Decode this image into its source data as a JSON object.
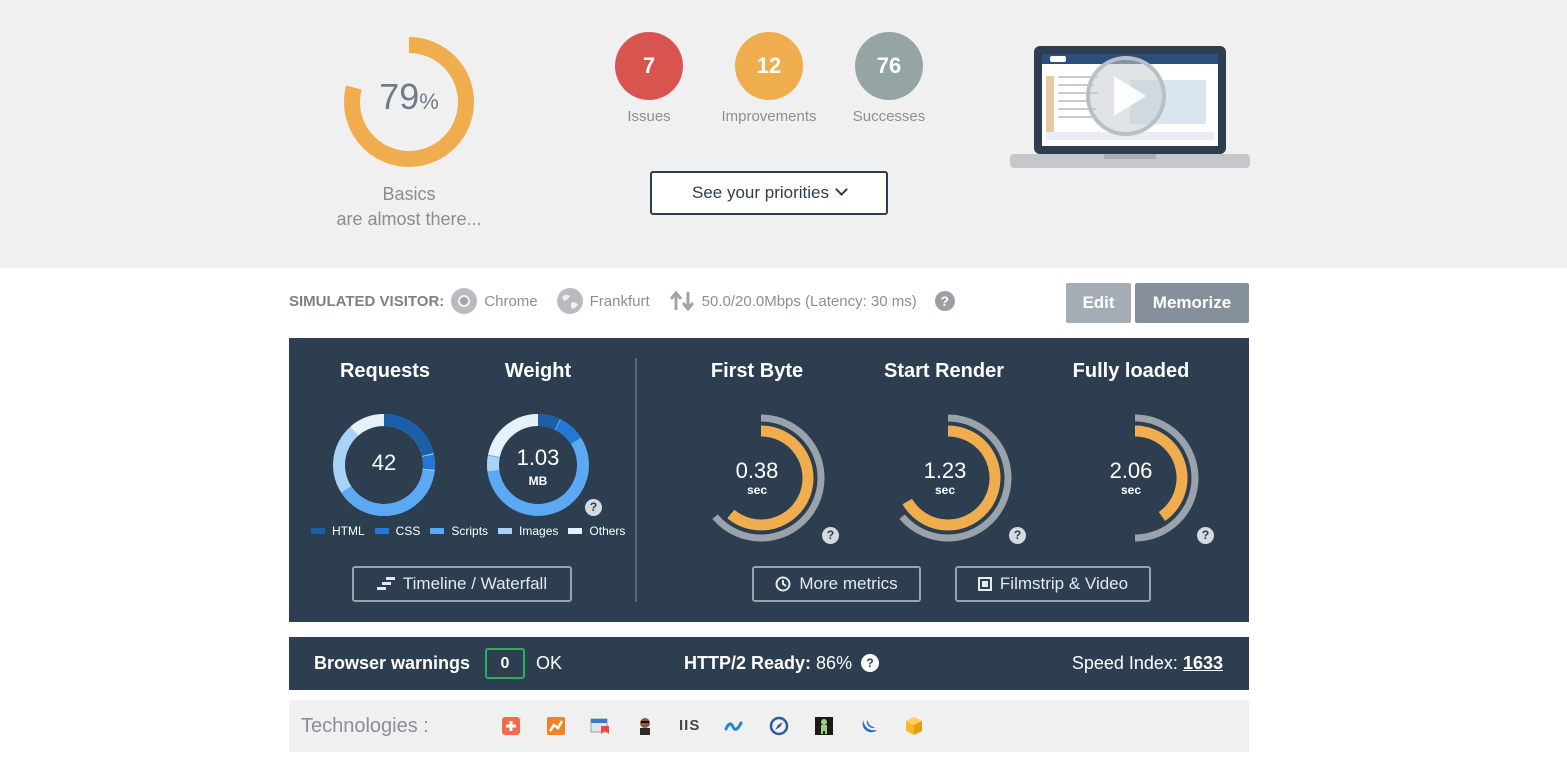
{
  "score": {
    "value": "79",
    "unit": "%",
    "caption_line1": "Basics",
    "caption_line2": "are almost there...",
    "fraction": 0.79,
    "color": "#f0ad4e"
  },
  "stats": [
    {
      "value": "7",
      "label": "Issues",
      "color": "#d9534f"
    },
    {
      "value": "12",
      "label": "Improvements",
      "color": "#f0ad4e"
    },
    {
      "value": "76",
      "label": "Successes",
      "color": "#95a5a6"
    }
  ],
  "priorities_label": "See your priorities",
  "visitor": {
    "label": "SIMULATED VISITOR:",
    "browser": "Chrome",
    "location": "Frankfurt",
    "connection": "50.0/20.0Mbps (Latency: 30 ms)",
    "help": "?"
  },
  "buttons": {
    "edit": "Edit",
    "memorize": "Memorize"
  },
  "panel": {
    "requests_title": "Requests",
    "requests_value": "42",
    "weight_title": "Weight",
    "weight_value": "1.03",
    "weight_unit": "MB",
    "legend": [
      {
        "label": "HTML",
        "color": "#1a5fa8"
      },
      {
        "label": "CSS",
        "color": "#2378d6"
      },
      {
        "label": "Scripts",
        "color": "#5aa9f2"
      },
      {
        "label": "Images",
        "color": "#a9d2f7"
      },
      {
        "label": "Others",
        "color": "#e8f1f9"
      }
    ],
    "timeline_label": "Timeline / Waterfall",
    "more_metrics_label": "More metrics",
    "filmstrip_label": "Filmstrip & Video",
    "help": "?",
    "timings": [
      {
        "title": "First Byte",
        "value": "0.38",
        "unit": "sec"
      },
      {
        "title": "Start Render",
        "value": "1.23",
        "unit": "sec"
      },
      {
        "title": "Fully loaded",
        "value": "2.06",
        "unit": "sec"
      }
    ]
  },
  "warnings": {
    "label": "Browser warnings",
    "count": "0",
    "status": "OK",
    "http2_label": "HTTP/2 Ready:",
    "http2_value": "86%",
    "help": "?",
    "speed_index_label": "Speed Index:",
    "speed_index_value": "1633"
  },
  "technologies": {
    "label": "Technologies :",
    "icons": [
      "plus-logo-icon",
      "analytics-chart-icon",
      "window-tag-icon",
      "person-avatar-icon",
      "iis-text-icon",
      "wave-logo-icon",
      "compass-logo-icon",
      "robot-logo-icon",
      "jquery-logo-icon",
      "cube-logo-icon"
    ],
    "iis_text": "IIS"
  }
}
